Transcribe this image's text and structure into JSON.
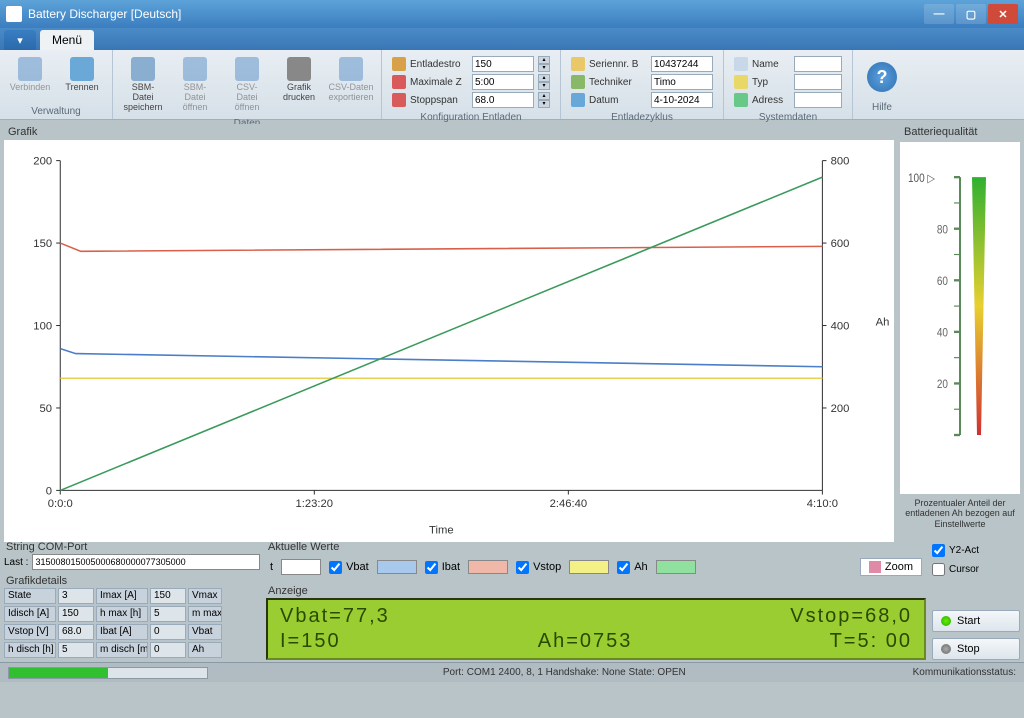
{
  "window": {
    "title": "Battery Discharger [Deutsch]"
  },
  "tabs": {
    "menu": "Menü"
  },
  "ribbon": {
    "verwaltung": {
      "label": "Verwaltung",
      "verbinden": "Verbinden",
      "trennen": "Trennen"
    },
    "daten": {
      "label": "Daten",
      "sbm_speichern": "SBM-Datei speichern",
      "sbm_offnen": "SBM-Datei öffnen",
      "csv_offnen": "CSV-Datei öffnen",
      "grafik_drucken": "Grafik drucken",
      "csv_export": "CSV-Daten exportieren"
    },
    "config": {
      "label": "Konfiguration Entladen",
      "entladestrom": {
        "lbl": "Entladestro",
        "val": "150"
      },
      "maximale": {
        "lbl": "Maximale Z",
        "val": "5:00"
      },
      "stoppspan": {
        "lbl": "Stoppspan",
        "val": "68.0"
      }
    },
    "zyklus": {
      "label": "Entladezyklus",
      "seriennr": {
        "lbl": "Seriennr. B",
        "val": "10437244"
      },
      "techniker": {
        "lbl": "Techniker",
        "val": "Timo"
      },
      "datum": {
        "lbl": "Datum",
        "val": "4-10-2024"
      }
    },
    "system": {
      "label": "Systemdaten",
      "name": {
        "lbl": "Name",
        "val": ""
      },
      "typ": {
        "lbl": "Typ",
        "val": ""
      },
      "adress": {
        "lbl": "Adress",
        "val": ""
      }
    },
    "hilfe": "Hilfe"
  },
  "graph": {
    "label": "Grafik",
    "xlabel": "Time",
    "y2label": "Ah",
    "y1_ticks": [
      0,
      50,
      100,
      150,
      200
    ],
    "y2_ticks": [
      200,
      400,
      600,
      800
    ],
    "x_ticks": [
      "0:0:0",
      "1:23:20",
      "2:46:40",
      "4:10:0"
    ],
    "series": {
      "vbat": {
        "color": "#4a7ec8",
        "start": 83,
        "end": 75
      },
      "ibat": {
        "color": "#d8604a",
        "start": 150,
        "end": 148
      },
      "vstop": {
        "color": "#e8d050",
        "val": 68
      },
      "ah": {
        "color": "#3a9a5a",
        "start_y2": 0,
        "end_y2": 760
      }
    }
  },
  "quality": {
    "label": "Batteriequalität",
    "marker": "100 ▷",
    "ticks": [
      20,
      40,
      60,
      80
    ],
    "footer": "Prozentualer Anteil der entladenen Ah bezogen auf Einstellwerte"
  },
  "comport": {
    "label": "String COM-Port",
    "last": "Last :",
    "val": "315008015005000680000077305000"
  },
  "details": {
    "label": "Grafikdetails",
    "state": {
      "l": "State",
      "v": "3"
    },
    "imax": {
      "l": "Imax [A]",
      "v": "150"
    },
    "vmax": {
      "l": "Vmax"
    },
    "idisch": {
      "l": "Idisch [A]",
      "v": "150"
    },
    "hmax": {
      "l": "h max [h]",
      "v": "5"
    },
    "mmax": {
      "l": "m max"
    },
    "vstop": {
      "l": "Vstop [V]",
      "v": "68.0"
    },
    "ibat": {
      "l": "Ibat [A]",
      "v": "0"
    },
    "vbat": {
      "l": "Vbat"
    },
    "hdisch": {
      "l": "h disch [h]",
      "v": "5"
    },
    "mdisch": {
      "l": "m disch [m]",
      "v": "0"
    },
    "ah": {
      "l": "Ah"
    }
  },
  "aktuelle": {
    "label": "Aktuelle Werte",
    "t": "t",
    "vbat": "Vbat",
    "ibat": "Ibat",
    "vstop": "Vstop",
    "ah": "Ah",
    "zoom": "Zoom"
  },
  "anzeige": {
    "label": "Anzeige",
    "vbat": "Vbat=77,3",
    "vstop": "Vstop=68,0",
    "i": "I=150",
    "ah": "Ah=0753",
    "t": "T=5: 00"
  },
  "side": {
    "y2": "Y2-Act",
    "cursor": "Cursor",
    "start": "Start",
    "stop": "Stop"
  },
  "status": {
    "port": "Port: COM1  2400, 8, 1   Handshake: None   State: OPEN",
    "komm": "Kommunikationsstatus:",
    "progress": 50
  },
  "colors": {
    "vbat": "#a8c8ec",
    "ibat": "#f0b8a8",
    "vstop": "#f4f088",
    "ah": "#90e0a0"
  }
}
